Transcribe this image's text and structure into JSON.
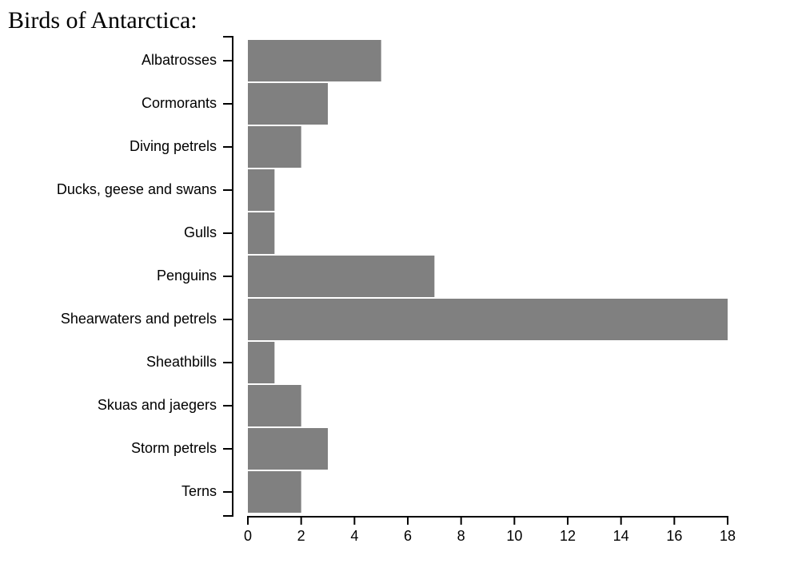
{
  "title": "Birds of Antarctica:",
  "chart_data": {
    "type": "bar",
    "orientation": "horizontal",
    "categories": [
      "Albatrosses",
      "Cormorants",
      "Diving petrels",
      "Ducks, geese and swans",
      "Gulls",
      "Penguins",
      "Shearwaters and petrels",
      "Sheathbills",
      "Skuas and jaegers",
      "Storm petrels",
      "Terns"
    ],
    "values": [
      5,
      3,
      2,
      1,
      1,
      7,
      18,
      1,
      2,
      3,
      2
    ],
    "xlim": [
      0,
      18
    ],
    "xticks": [
      0,
      2,
      4,
      6,
      8,
      10,
      12,
      14,
      16,
      18
    ],
    "bar_color": "#808080",
    "axis_color": "#000000",
    "grid": false,
    "legend": "none"
  }
}
